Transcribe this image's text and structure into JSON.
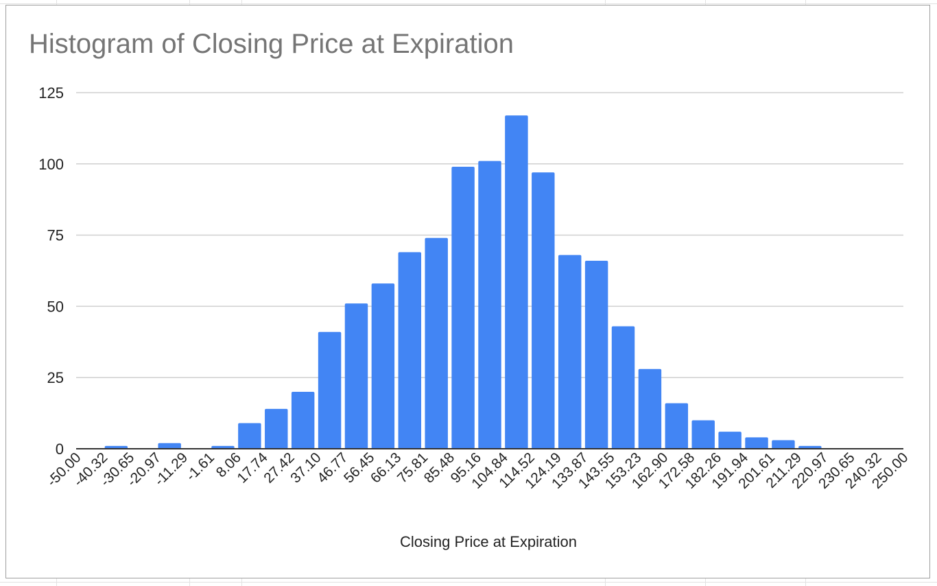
{
  "chart_data": {
    "type": "bar",
    "title": "Histogram of Closing Price at Expiration",
    "xlabel": "Closing Price at Expiration",
    "ylabel": "",
    "ylim": [
      0,
      125
    ],
    "yticks": [
      "0",
      "25",
      "50",
      "75",
      "100",
      "125"
    ],
    "ytick_values": [
      0,
      25,
      50,
      75,
      100,
      125
    ],
    "grid": true,
    "legend": "none",
    "bar_color": "#4285f4",
    "tick_labels": [
      "-50.00",
      "-40.32",
      "-30.65",
      "-20.97",
      "-11.29",
      "-1.61",
      "8.06",
      "17.74",
      "27.42",
      "37.10",
      "46.77",
      "56.45",
      "66.13",
      "75.81",
      "85.48",
      "95.16",
      "104.84",
      "114.52",
      "124.19",
      "133.87",
      "143.55",
      "153.23",
      "162.90",
      "172.58",
      "182.26",
      "191.94",
      "201.61",
      "211.29",
      "220.97",
      "230.65",
      "240.32",
      "250.00"
    ],
    "values": [
      0,
      1,
      0,
      2,
      0,
      1,
      9,
      14,
      20,
      41,
      51,
      58,
      69,
      74,
      99,
      101,
      117,
      97,
      68,
      66,
      43,
      28,
      16,
      10,
      6,
      4,
      3,
      1,
      0,
      0,
      0
    ]
  }
}
